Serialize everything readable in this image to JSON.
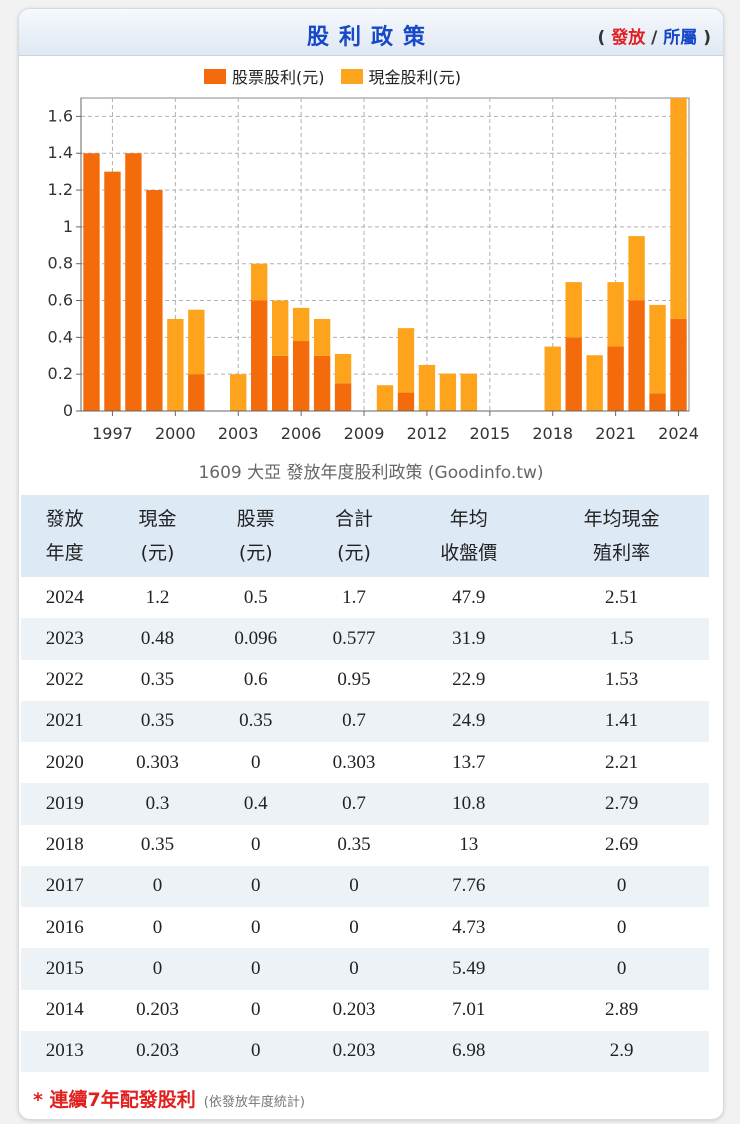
{
  "header": {
    "title": "股利政策",
    "link_open": "(",
    "link_issue": "發放",
    "link_sep": "/",
    "link_belong": "所屬",
    "link_close": ")"
  },
  "legend": {
    "stock_label": "股票股利(元)",
    "cash_label": "現金股利(元)"
  },
  "colors": {
    "stock": "#f36b0b",
    "cash": "#fda31c",
    "title": "#1648c8",
    "accent_red": "#e11f1f"
  },
  "chart_caption": "1609 大亞 發放年度股利政策 (Goodinfo.tw)",
  "chart_data": {
    "type": "bar",
    "stacked": true,
    "title": "1609 大亞 發放年度股利政策 (Goodinfo.tw)",
    "categories": [
      1996,
      1997,
      1998,
      1999,
      2000,
      2001,
      2002,
      2003,
      2004,
      2005,
      2006,
      2007,
      2008,
      2009,
      2010,
      2011,
      2012,
      2013,
      2014,
      2015,
      2016,
      2017,
      2018,
      2019,
      2020,
      2021,
      2022,
      2023,
      2024
    ],
    "series": [
      {
        "name": "股票股利(元)",
        "values": [
          1.4,
          1.3,
          1.4,
          1.2,
          0,
          0.2,
          0,
          0,
          0.6,
          0.3,
          0.38,
          0.3,
          0.15,
          0,
          0,
          0.1,
          0,
          0,
          0,
          0,
          0,
          0,
          0,
          0.4,
          0,
          0.35,
          0.6,
          0.096,
          0.5
        ]
      },
      {
        "name": "現金股利(元)",
        "values": [
          0,
          0,
          0,
          0,
          0.5,
          0.35,
          0,
          0.2,
          0.2,
          0.3,
          0.18,
          0.2,
          0.16,
          0,
          0.14,
          0.35,
          0.25,
          0.203,
          0.203,
          0,
          0,
          0,
          0.35,
          0.3,
          0.303,
          0.35,
          0.35,
          0.48,
          1.2
        ]
      }
    ],
    "xticks": [
      1997,
      2000,
      2003,
      2006,
      2009,
      2012,
      2015,
      2018,
      2021,
      2024
    ],
    "yticks": [
      "0",
      "0.2",
      "0.4",
      "0.6",
      "0.8",
      "1",
      "1.2",
      "1.4",
      "1.6"
    ],
    "ylim": [
      0,
      1.7
    ],
    "grid": true,
    "legend_position": "top"
  },
  "table": {
    "headers": [
      {
        "l1": "發放",
        "l2": "年度"
      },
      {
        "l1": "現金",
        "l2": "(元)"
      },
      {
        "l1": "股票",
        "l2": "(元)"
      },
      {
        "l1": "合計",
        "l2": "(元)"
      },
      {
        "l1": "年均",
        "l2": "收盤價"
      },
      {
        "l1": "年均現金",
        "l2": "殖利率"
      }
    ],
    "rows": [
      [
        "2024",
        "1.2",
        "0.5",
        "1.7",
        "47.9",
        "2.51"
      ],
      [
        "2023",
        "0.48",
        "0.096",
        "0.577",
        "31.9",
        "1.5"
      ],
      [
        "2022",
        "0.35",
        "0.6",
        "0.95",
        "22.9",
        "1.53"
      ],
      [
        "2021",
        "0.35",
        "0.35",
        "0.7",
        "24.9",
        "1.41"
      ],
      [
        "2020",
        "0.303",
        "0",
        "0.303",
        "13.7",
        "2.21"
      ],
      [
        "2019",
        "0.3",
        "0.4",
        "0.7",
        "10.8",
        "2.79"
      ],
      [
        "2018",
        "0.35",
        "0",
        "0.35",
        "13",
        "2.69"
      ],
      [
        "2017",
        "0",
        "0",
        "0",
        "7.76",
        "0"
      ],
      [
        "2016",
        "0",
        "0",
        "0",
        "4.73",
        "0"
      ],
      [
        "2015",
        "0",
        "0",
        "0",
        "5.49",
        "0"
      ],
      [
        "2014",
        "0.203",
        "0",
        "0.203",
        "7.01",
        "2.89"
      ],
      [
        "2013",
        "0.203",
        "0",
        "0.203",
        "6.98",
        "2.9"
      ]
    ]
  },
  "footnote": {
    "text": "* 連續7年配發股利",
    "sub": "(依發放年度統計)"
  }
}
